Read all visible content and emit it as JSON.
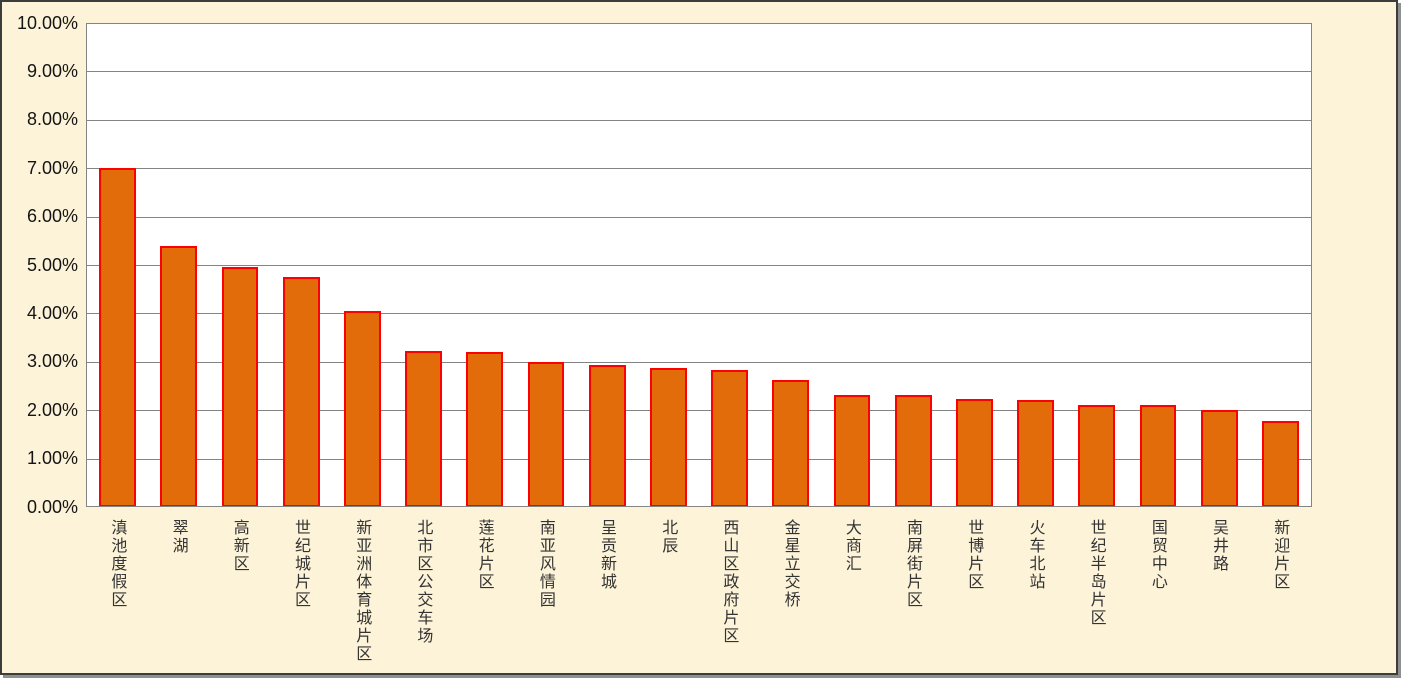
{
  "chart_data": {
    "type": "bar",
    "title": "",
    "xlabel": "",
    "ylabel": "",
    "unit": "%",
    "categories": [
      "滇池度假区",
      "翠湖",
      "高新区",
      "世纪城片区",
      "新亚洲体育城片区",
      "北市区公交车场",
      "莲花片区",
      "南亚风情园",
      "呈贡新城",
      "北辰",
      "西山区政府片区",
      "金星立交桥",
      "大商汇",
      "南屏街片区",
      "世博片区",
      "火车北站",
      "世纪半岛片区",
      "国贸中心",
      "吴井路",
      "新迎片区"
    ],
    "values": [
      7.0,
      5.4,
      4.95,
      4.76,
      4.04,
      3.22,
      3.2,
      2.99,
      2.94,
      2.88,
      2.83,
      2.62,
      2.32,
      2.32,
      2.23,
      2.21,
      2.1,
      2.1,
      2.0,
      1.78
    ],
    "ylim": [
      0,
      10
    ],
    "ytick_step": 1,
    "ytick_labels": [
      "0.00%",
      "1.00%",
      "2.00%",
      "3.00%",
      "4.00%",
      "5.00%",
      "6.00%",
      "7.00%",
      "8.00%",
      "9.00%",
      "10.00%"
    ],
    "grid": true,
    "legend_position": "none",
    "colors": {
      "bar_fill": "#E36C0A",
      "bar_border": "#FF0000",
      "chart_background": "#FDF3D8",
      "plot_background": "#FFFFFF",
      "gridline": "#848484",
      "axis_text": "#141414",
      "frame_border": "#3C3C3C",
      "frame_shadow": "#8F8F8F"
    }
  }
}
